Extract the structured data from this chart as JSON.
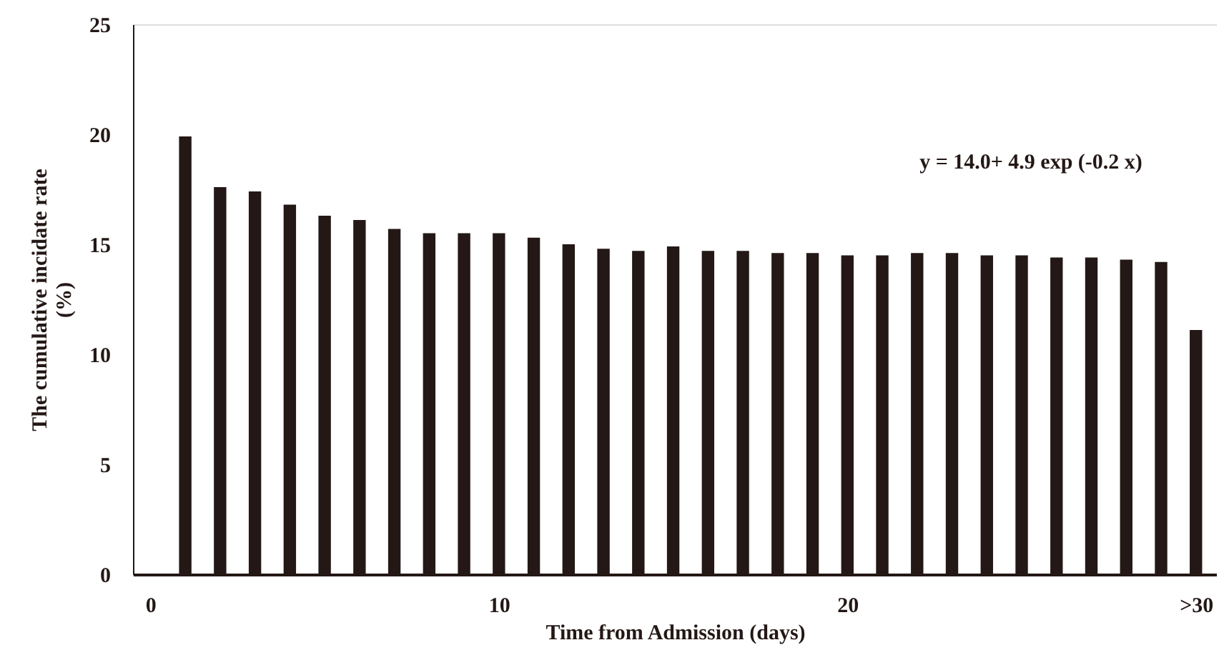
{
  "chart_data": {
    "type": "bar",
    "xlabel": "Time from Admission (days)",
    "ylabel": "The cumulative incidate rate (%)",
    "x": [
      1,
      2,
      3,
      4,
      5,
      6,
      7,
      8,
      9,
      10,
      11,
      12,
      13,
      14,
      15,
      16,
      17,
      18,
      19,
      20,
      21,
      22,
      23,
      24,
      25,
      26,
      27,
      28,
      29,
      30
    ],
    "values": [
      19.9,
      17.6,
      17.4,
      16.8,
      16.3,
      16.1,
      15.7,
      15.5,
      15.5,
      15.5,
      15.3,
      15.0,
      14.8,
      14.7,
      14.9,
      14.7,
      14.7,
      14.6,
      14.6,
      14.5,
      14.5,
      14.6,
      14.6,
      14.5,
      14.5,
      14.4,
      14.4,
      14.3,
      14.2,
      11.1
    ],
    "color": "#231815",
    "xlim": [
      -0.5,
      30.6
    ],
    "xticks": [
      0,
      10,
      20,
      {
        "value": 30,
        "label": ">30"
      }
    ],
    "ylim": [
      0,
      25
    ],
    "yticks": [
      0,
      5,
      10,
      15,
      20,
      25
    ],
    "grid": false,
    "annotations": [
      "y = 14.0+ 4.9 exp (-0.2 x)"
    ]
  }
}
